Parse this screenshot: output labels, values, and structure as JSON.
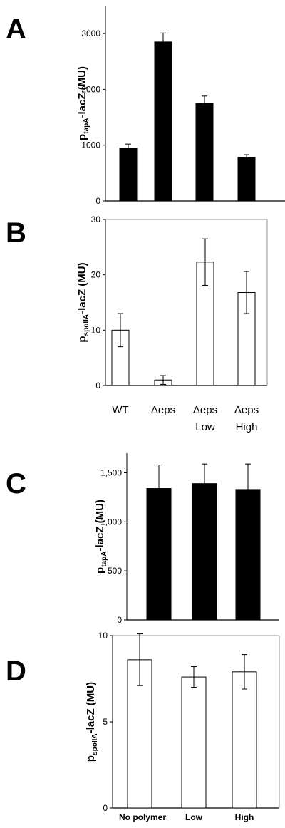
{
  "chart_data": [
    {
      "panel": "A",
      "type": "bar",
      "ylabel_main": "p",
      "ylabel_sub": "tapA",
      "ylabel_rest": "-lacZ (MU)",
      "ylim": [
        0,
        3500
      ],
      "yticks": [
        0,
        1000,
        2000,
        3000
      ],
      "ytick_labels": [
        "0",
        "1000",
        "2000",
        "3000"
      ],
      "categories": [
        "WT",
        "Δeps",
        "Δeps Low",
        "Δeps High"
      ],
      "values": [
        950,
        2850,
        1750,
        780
      ],
      "errors": [
        70,
        160,
        130,
        50
      ],
      "bar_fill": "#000000",
      "show_category_labels": false
    },
    {
      "panel": "B",
      "type": "bar",
      "ylabel_main": "p",
      "ylabel_sub": "spoIIA",
      "ylabel_rest": "-lacZ (MU)",
      "ylim": [
        0,
        30
      ],
      "yticks": [
        0,
        10,
        20,
        30
      ],
      "ytick_labels": [
        "0",
        "10",
        "20",
        "30"
      ],
      "categories": [
        "WT",
        "Δeps",
        "Δeps Low",
        "Δeps High"
      ],
      "category_lines": [
        [
          "WT"
        ],
        [
          "Δeps"
        ],
        [
          "Δeps",
          "Low"
        ],
        [
          "Δeps",
          "High"
        ]
      ],
      "values": [
        10,
        1,
        22.3,
        16.8
      ],
      "errors": [
        3,
        0.8,
        4.2,
        3.8
      ],
      "bar_fill": "#ffffff",
      "show_category_labels": true
    },
    {
      "panel": "C",
      "type": "bar",
      "ylabel_main": "p",
      "ylabel_sub": "tapA",
      "ylabel_rest": "-lacZ (MU)",
      "ylim": [
        0,
        1700
      ],
      "yticks": [
        0,
        500,
        1000,
        1500
      ],
      "ytick_labels": [
        "0",
        "500",
        "1,000",
        "1,500"
      ],
      "categories": [
        "No polymer",
        "Low",
        "High"
      ],
      "values": [
        1340,
        1390,
        1330
      ],
      "errors": [
        240,
        200,
        260
      ],
      "bar_fill": "#000000",
      "show_category_labels": false
    },
    {
      "panel": "D",
      "type": "bar",
      "ylabel_main": "p",
      "ylabel_sub": "spoIIA",
      "ylabel_rest": "-lacZ (MU)",
      "ylim": [
        0,
        10
      ],
      "yticks": [
        0,
        5,
        10
      ],
      "ytick_labels": [
        "0",
        "5",
        "10"
      ],
      "categories": [
        "No polymer",
        "Low",
        "High"
      ],
      "category_lines": [
        [
          "No polymer"
        ],
        [
          "Low"
        ],
        [
          "High"
        ]
      ],
      "values": [
        8.6,
        7.6,
        7.9
      ],
      "errors": [
        1.5,
        0.6,
        1.0
      ],
      "bar_fill": "#ffffff",
      "show_category_labels": true
    }
  ]
}
